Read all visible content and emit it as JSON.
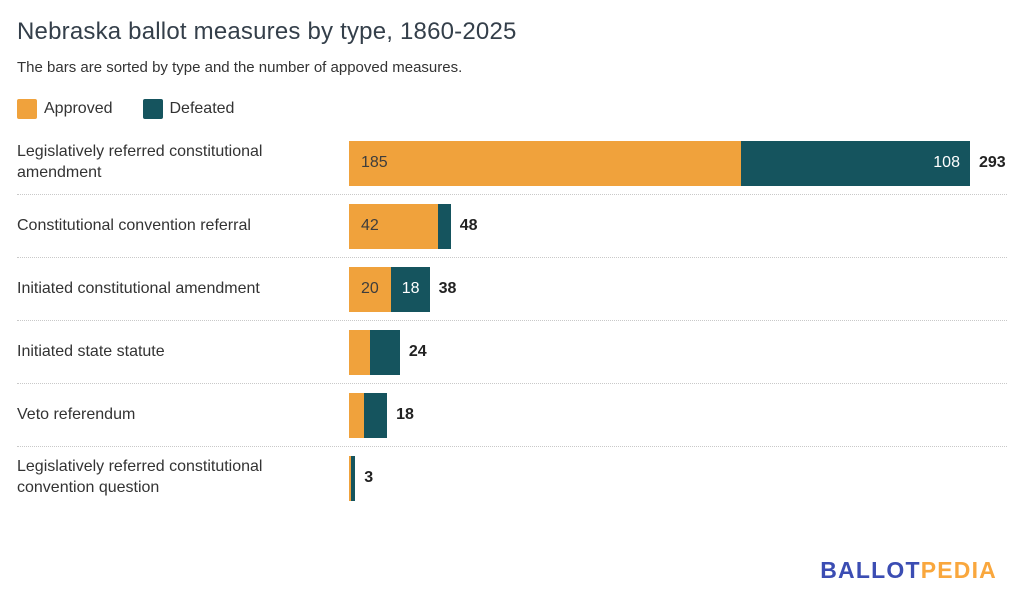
{
  "chart_data": {
    "type": "bar",
    "orientation": "horizontal",
    "stacked": true,
    "title": "Nebraska ballot measures by type, 1860-2025",
    "subtitle": "The bars are sorted by type and the number of appoved measures.",
    "categories": [
      "Legislatively referred constitutional amendment",
      "Constitutional convention referral",
      "Initiated constitutional amendment",
      "Initiated state statute",
      "Veto referendum",
      "Legislatively referred constitutional convention question"
    ],
    "series": [
      {
        "name": "Approved",
        "color": "#f0a23c",
        "values": [
          185,
          42,
          20,
          10,
          7,
          1
        ]
      },
      {
        "name": "Defeated",
        "color": "#15545e",
        "values": [
          108,
          6,
          18,
          14,
          11,
          2
        ]
      }
    ],
    "totals": [
      293,
      48,
      38,
      24,
      18,
      3
    ],
    "bar_labels": {
      "approved": [
        "185",
        "42",
        "20",
        "",
        "",
        ""
      ],
      "defeated": [
        "108",
        "",
        "18",
        "",
        "",
        ""
      ],
      "totals": [
        "293",
        "48",
        "38",
        "24",
        "18",
        "3"
      ]
    },
    "xlim": [
      0,
      293
    ],
    "grid": false,
    "legend_position": "top-left"
  },
  "footer": {
    "logo_part1": "BALLOT",
    "logo_part2": "PEDIA",
    "logo_color1": "#3b4db3",
    "logo_color2": "#f9a73d"
  }
}
